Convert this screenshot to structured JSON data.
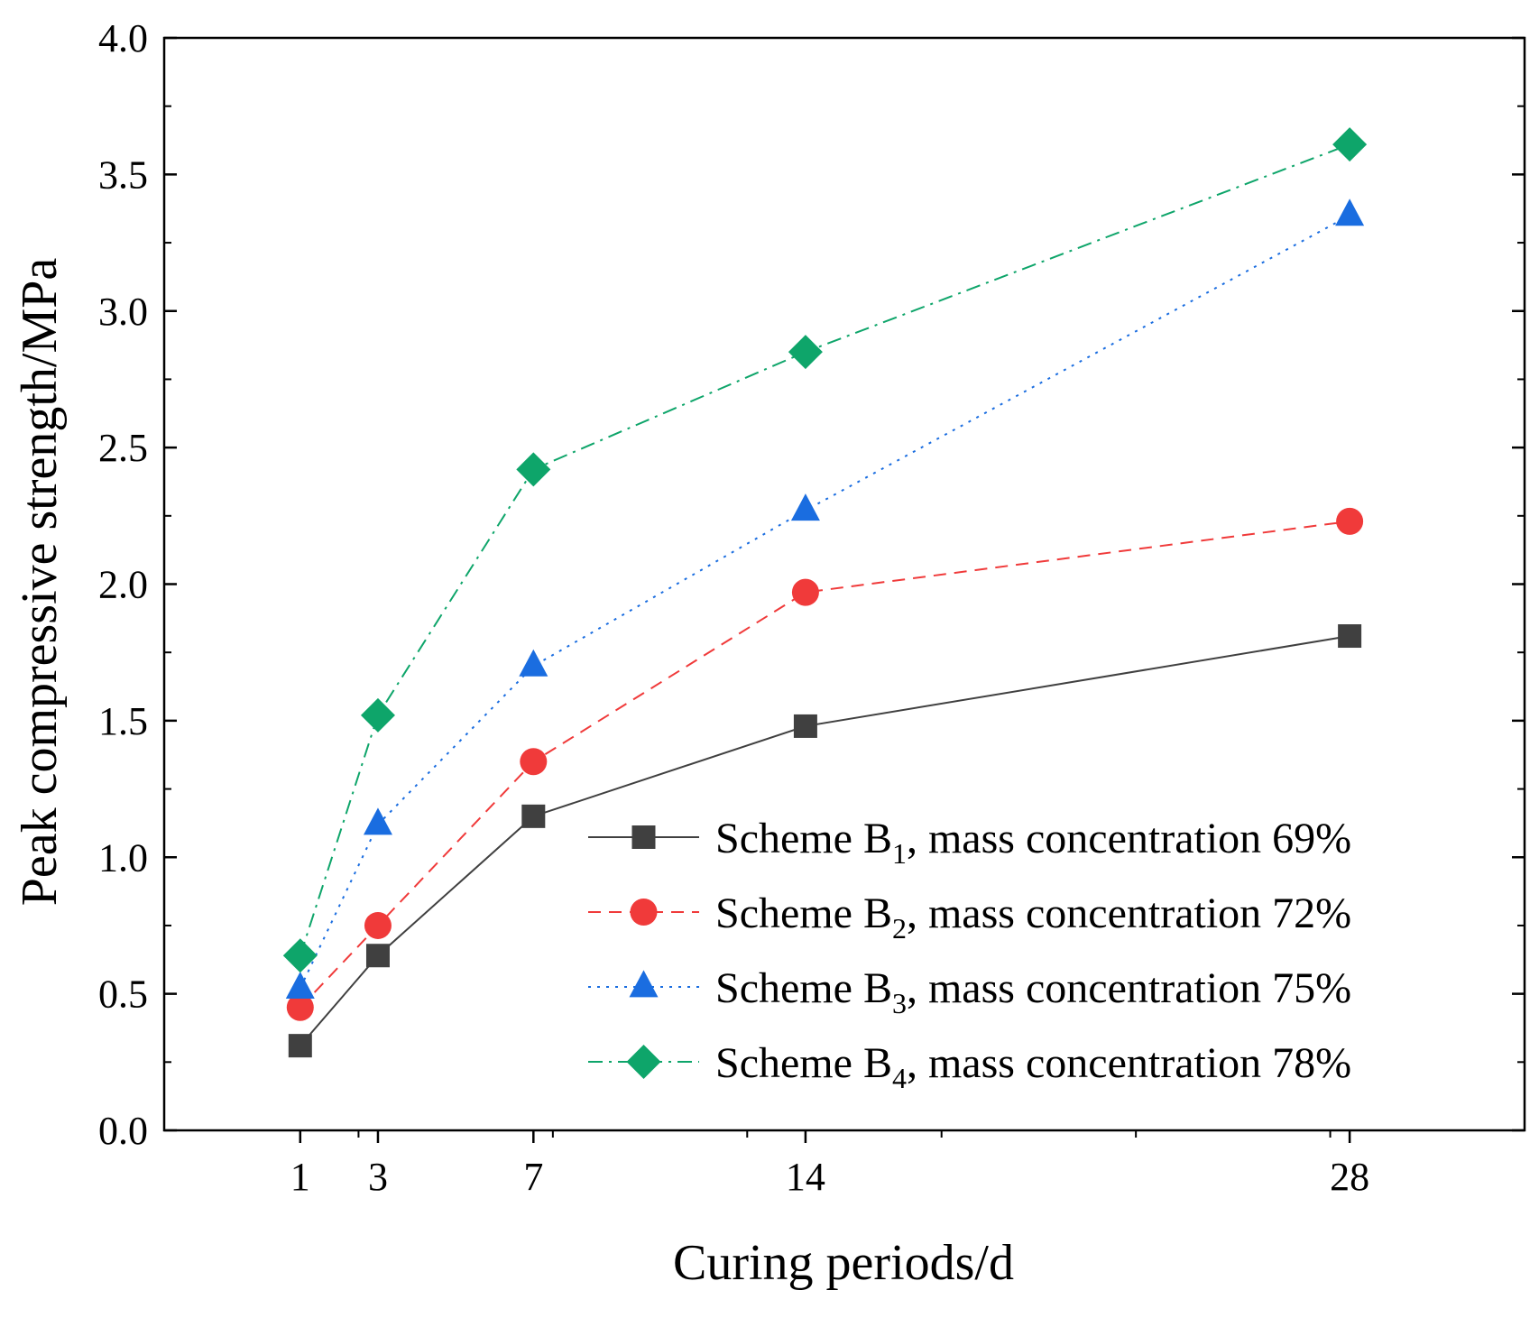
{
  "chart_data": {
    "type": "line",
    "title": "",
    "xlabel": "Curing periods/d",
    "ylabel": "Peak compressive strength/MPa",
    "x": [
      1,
      3,
      7,
      14,
      28
    ],
    "x_ticks": [
      1,
      3,
      7,
      14,
      28
    ],
    "x_tick_labels": [
      "1",
      "3",
      "7",
      14,
      "28"
    ],
    "xlim": [
      -2.5,
      32.5
    ],
    "ylim": [
      0.0,
      4.0
    ],
    "y_ticks": [
      0.0,
      0.5,
      1.0,
      1.5,
      2.0,
      2.5,
      3.0,
      3.5,
      4.0
    ],
    "y_tick_labels": [
      "0.0",
      "0.5",
      "1.0",
      "1.5",
      "2.0",
      "2.5",
      "3.0",
      "3.5",
      "4.0"
    ],
    "grid": false,
    "legend_position": "bottom-right",
    "series": [
      {
        "name": "Scheme B1, mass concentration 69%",
        "label_prefix": "Scheme B",
        "label_sub": "1",
        "label_suffix": ", mass concentration 69%",
        "values": [
          0.31,
          0.64,
          1.15,
          1.48,
          1.81
        ],
        "color": "#404040",
        "marker": "square",
        "line_style": "solid"
      },
      {
        "name": "Scheme B2, mass concentration 72%",
        "label_prefix": "Scheme B",
        "label_sub": "2",
        "label_suffix": ", mass concentration 72%",
        "values": [
          0.45,
          0.75,
          1.35,
          1.97,
          2.23
        ],
        "color": "#f03a3a",
        "marker": "circle",
        "line_style": "dashed"
      },
      {
        "name": "Scheme B3, mass concentration 75%",
        "label_prefix": "Scheme B",
        "label_sub": "3",
        "label_suffix": ", mass concentration 75%",
        "values": [
          0.52,
          1.12,
          1.7,
          2.27,
          3.35
        ],
        "color": "#1a6de0",
        "marker": "triangle",
        "line_style": "dotted"
      },
      {
        "name": "Scheme B4, mass concentration 78%",
        "label_prefix": "Scheme B",
        "label_sub": "4",
        "label_suffix": ", mass concentration 78%",
        "values": [
          0.64,
          1.52,
          2.42,
          2.85,
          3.61
        ],
        "color": "#0ea56a",
        "marker": "diamond",
        "line_style": "dashdot"
      }
    ]
  }
}
